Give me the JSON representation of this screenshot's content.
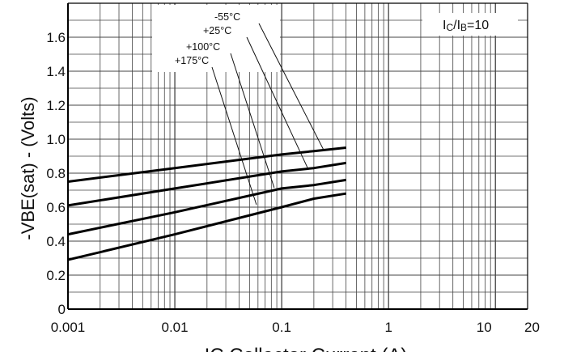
{
  "chart_data": {
    "type": "line",
    "xscale": "log",
    "xlim": [
      0.001,
      20
    ],
    "ylim": [
      0,
      1.8
    ],
    "grid": true,
    "ylabel": "-VBE(sat) - (Volts)",
    "xlabel": "IC Collector Current (A)",
    "x_ticks": [
      "0.001",
      "0.01",
      "0.1",
      "1",
      "10",
      "20"
    ],
    "y_ticks": [
      "0",
      "0.2",
      "0.4",
      "0.6",
      "0.8",
      "1.0",
      "1.2",
      "1.4",
      "1.6"
    ],
    "condition": {
      "main": "I",
      "sub1": "C",
      "slash": "/I",
      "sub2": "B",
      "rest": "=10"
    },
    "series": [
      {
        "name": "-55°C",
        "x": [
          0.001,
          0.01,
          0.1,
          0.2,
          0.4
        ],
        "y": [
          0.75,
          0.83,
          0.91,
          0.93,
          0.95
        ]
      },
      {
        "name": "+25°C",
        "x": [
          0.001,
          0.01,
          0.1,
          0.2,
          0.4
        ],
        "y": [
          0.61,
          0.71,
          0.81,
          0.83,
          0.86
        ]
      },
      {
        "name": "+100°C",
        "x": [
          0.001,
          0.01,
          0.1,
          0.2,
          0.4
        ],
        "y": [
          0.44,
          0.57,
          0.71,
          0.73,
          0.76
        ]
      },
      {
        "name": "+175°C",
        "x": [
          0.001,
          0.01,
          0.1,
          0.2,
          0.4
        ],
        "y": [
          0.29,
          0.44,
          0.6,
          0.65,
          0.68
        ]
      }
    ],
    "colors": {
      "line": "#000000",
      "grid": "#444444",
      "axis": "#000000"
    }
  }
}
